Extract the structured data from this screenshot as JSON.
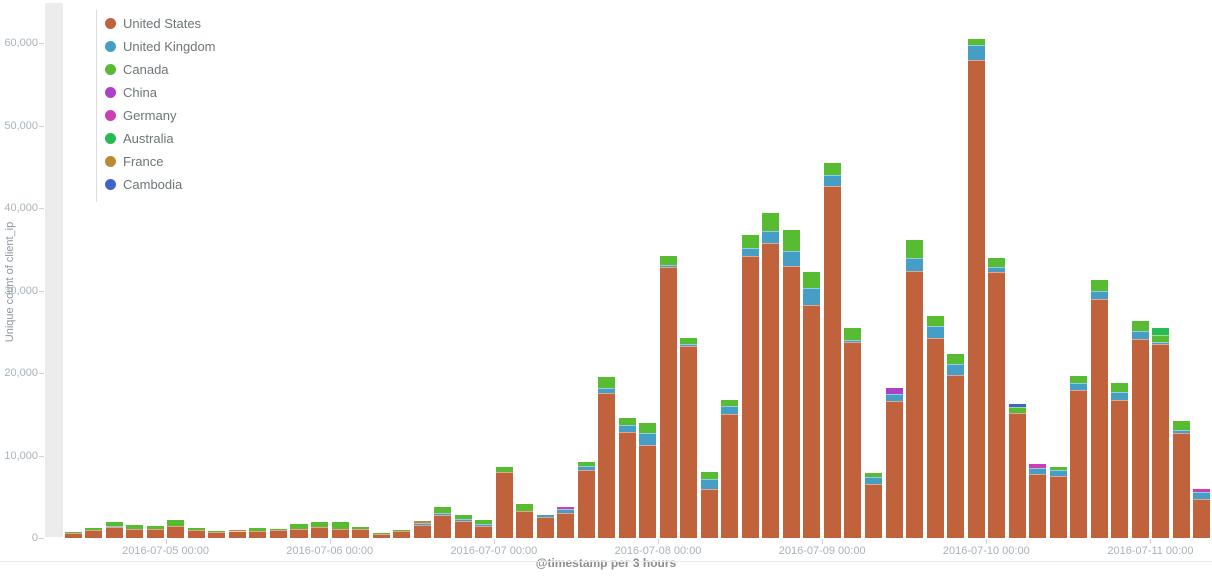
{
  "chart": {
    "y_axis": {
      "title": "Unique count of client_ip",
      "ticks": [
        {
          "value": 0,
          "label": "0"
        },
        {
          "value": 10000,
          "label": "10,000"
        },
        {
          "value": 20000,
          "label": "20,000"
        },
        {
          "value": 30000,
          "label": "30,000"
        },
        {
          "value": 40000,
          "label": "40,000"
        },
        {
          "value": 50000,
          "label": "50,000"
        },
        {
          "value": 60000,
          "label": "60,000"
        }
      ]
    },
    "x_axis": {
      "title": "@timestamp per 3 hours",
      "ticks": [
        {
          "index": 5,
          "label": "2016-07-05 00:00"
        },
        {
          "index": 13,
          "label": "2016-07-06 00:00"
        },
        {
          "index": 21,
          "label": "2016-07-07 00:00"
        },
        {
          "index": 29,
          "label": "2016-07-08 00:00"
        },
        {
          "index": 37,
          "label": "2016-07-09 00:00"
        },
        {
          "index": 45,
          "label": "2016-07-10 00:00"
        },
        {
          "index": 53,
          "label": "2016-07-11 00:00"
        }
      ]
    }
  },
  "chart_data": {
    "type": "bar",
    "stacked": true,
    "title": "",
    "xlabel": "@timestamp per 3 hours",
    "ylabel": "Unique count of client_ip",
    "ylim": [
      0,
      60000
    ],
    "legend_position": "top-left",
    "grid": false,
    "x": [
      "2016-07-04 09:00",
      "2016-07-04 12:00",
      "2016-07-04 15:00",
      "2016-07-04 18:00",
      "2016-07-04 21:00",
      "2016-07-05 00:00",
      "2016-07-05 03:00",
      "2016-07-05 06:00",
      "2016-07-05 09:00",
      "2016-07-05 12:00",
      "2016-07-05 15:00",
      "2016-07-05 18:00",
      "2016-07-05 21:00",
      "2016-07-06 00:00",
      "2016-07-06 03:00",
      "2016-07-06 06:00",
      "2016-07-06 09:00",
      "2016-07-06 12:00",
      "2016-07-06 15:00",
      "2016-07-06 18:00",
      "2016-07-06 21:00",
      "2016-07-07 00:00",
      "2016-07-07 03:00",
      "2016-07-07 06:00",
      "2016-07-07 09:00",
      "2016-07-07 12:00",
      "2016-07-07 15:00",
      "2016-07-07 18:00",
      "2016-07-07 21:00",
      "2016-07-08 00:00",
      "2016-07-08 03:00",
      "2016-07-08 06:00",
      "2016-07-08 09:00",
      "2016-07-08 12:00",
      "2016-07-08 15:00",
      "2016-07-08 18:00",
      "2016-07-08 21:00",
      "2016-07-09 00:00",
      "2016-07-09 03:00",
      "2016-07-09 06:00",
      "2016-07-09 09:00",
      "2016-07-09 12:00",
      "2016-07-09 15:00",
      "2016-07-09 18:00",
      "2016-07-09 21:00",
      "2016-07-10 00:00",
      "2016-07-10 03:00",
      "2016-07-10 06:00",
      "2016-07-10 09:00",
      "2016-07-10 12:00",
      "2016-07-10 15:00",
      "2016-07-10 18:00",
      "2016-07-10 21:00",
      "2016-07-11 00:00",
      "2016-07-11 03:00",
      "2016-07-11 06:00"
    ],
    "series": [
      {
        "name": "United States",
        "color": "#c0623c",
        "values": [
          550,
          1000,
          1350,
          1150,
          1050,
          1400,
          950,
          750,
          800,
          800,
          950,
          1100,
          1300,
          1100,
          1150,
          500,
          800,
          1600,
          2800,
          2100,
          1500,
          8000,
          3300,
          2550,
          3000,
          8300,
          17600,
          12800,
          11300,
          32800,
          23300,
          5900,
          15000,
          34200,
          35700,
          33000,
          28200,
          42700,
          23800,
          6500,
          16600,
          32400,
          24300,
          19800,
          57900,
          32300,
          15200,
          7800,
          7500,
          17900,
          29000,
          16700,
          24100,
          23500,
          12700,
          4700
        ]
      },
      {
        "name": "United Kingdom",
        "color": "#459ec6",
        "values": [
          0,
          0,
          150,
          0,
          0,
          0,
          0,
          0,
          0,
          0,
          0,
          0,
          0,
          0,
          0,
          0,
          0,
          200,
          200,
          150,
          150,
          0,
          0,
          250,
          500,
          450,
          600,
          850,
          1450,
          350,
          200,
          1250,
          1000,
          1000,
          1550,
          1850,
          2050,
          1250,
          150,
          850,
          850,
          1600,
          1350,
          1350,
          1800,
          500,
          0,
          700,
          750,
          850,
          1000,
          950,
          950,
          250,
          350,
          850
        ]
      },
      {
        "name": "Canada",
        "color": "#58bc33",
        "values": [
          150,
          200,
          400,
          450,
          400,
          800,
          250,
          100,
          50,
          400,
          150,
          600,
          650,
          850,
          200,
          100,
          150,
          0,
          800,
          550,
          550,
          650,
          800,
          0,
          0,
          450,
          1300,
          850,
          1250,
          1050,
          800,
          850,
          700,
          1500,
          2150,
          2450,
          1950,
          1450,
          1550,
          550,
          0,
          2100,
          1250,
          1150,
          800,
          1100,
          700,
          0,
          350,
          850,
          1300,
          1100,
          1200,
          900,
          1100,
          0
        ]
      },
      {
        "name": "China",
        "color": "#ab41c8",
        "values": [
          0,
          0,
          0,
          0,
          0,
          0,
          0,
          0,
          0,
          0,
          0,
          0,
          0,
          0,
          0,
          0,
          0,
          0,
          0,
          0,
          0,
          0,
          0,
          0,
          0,
          0,
          0,
          0,
          0,
          0,
          0,
          0,
          0,
          0,
          0,
          0,
          0,
          0,
          0,
          0,
          700,
          0,
          0,
          0,
          0,
          0,
          0,
          0,
          0,
          0,
          0,
          0,
          0,
          0,
          0,
          0
        ]
      },
      {
        "name": "Germany",
        "color": "#cc3fb4",
        "values": [
          0,
          0,
          0,
          0,
          0,
          0,
          0,
          0,
          0,
          0,
          0,
          0,
          0,
          0,
          0,
          0,
          0,
          0,
          0,
          0,
          0,
          0,
          0,
          0,
          300,
          0,
          0,
          0,
          0,
          0,
          0,
          0,
          0,
          0,
          0,
          0,
          0,
          0,
          0,
          0,
          0,
          0,
          0,
          0,
          0,
          0,
          0,
          500,
          0,
          0,
          0,
          0,
          0,
          0,
          0,
          350
        ]
      },
      {
        "name": "Australia",
        "color": "#27bc52",
        "values": [
          0,
          0,
          0,
          0,
          0,
          0,
          0,
          0,
          0,
          0,
          0,
          0,
          0,
          0,
          0,
          0,
          0,
          0,
          0,
          0,
          0,
          0,
          0,
          0,
          0,
          0,
          0,
          0,
          0,
          0,
          0,
          0,
          0,
          0,
          0,
          0,
          0,
          0,
          0,
          0,
          0,
          0,
          0,
          0,
          0,
          0,
          0,
          0,
          0,
          0,
          0,
          0,
          0,
          850,
          0,
          0
        ]
      },
      {
        "name": "France",
        "color": "#bd8a33",
        "values": [
          0,
          0,
          0,
          0,
          0,
          0,
          0,
          0,
          150,
          0,
          0,
          0,
          0,
          0,
          0,
          0,
          0,
          300,
          0,
          0,
          0,
          0,
          0,
          0,
          0,
          0,
          0,
          0,
          0,
          0,
          0,
          0,
          0,
          0,
          0,
          0,
          0,
          0,
          0,
          0,
          0,
          0,
          0,
          0,
          0,
          0,
          0,
          0,
          0,
          0,
          0,
          0,
          0,
          0,
          0,
          0
        ]
      },
      {
        "name": "Cambodia",
        "color": "#4064ca",
        "values": [
          0,
          0,
          0,
          0,
          0,
          0,
          0,
          0,
          0,
          0,
          0,
          0,
          0,
          0,
          0,
          0,
          0,
          0,
          0,
          0,
          0,
          0,
          0,
          0,
          0,
          0,
          0,
          0,
          0,
          0,
          0,
          0,
          0,
          0,
          0,
          0,
          0,
          0,
          0,
          0,
          0,
          0,
          0,
          0,
          0,
          0,
          400,
          0,
          0,
          0,
          0,
          0,
          0,
          0,
          0,
          0
        ]
      }
    ]
  }
}
